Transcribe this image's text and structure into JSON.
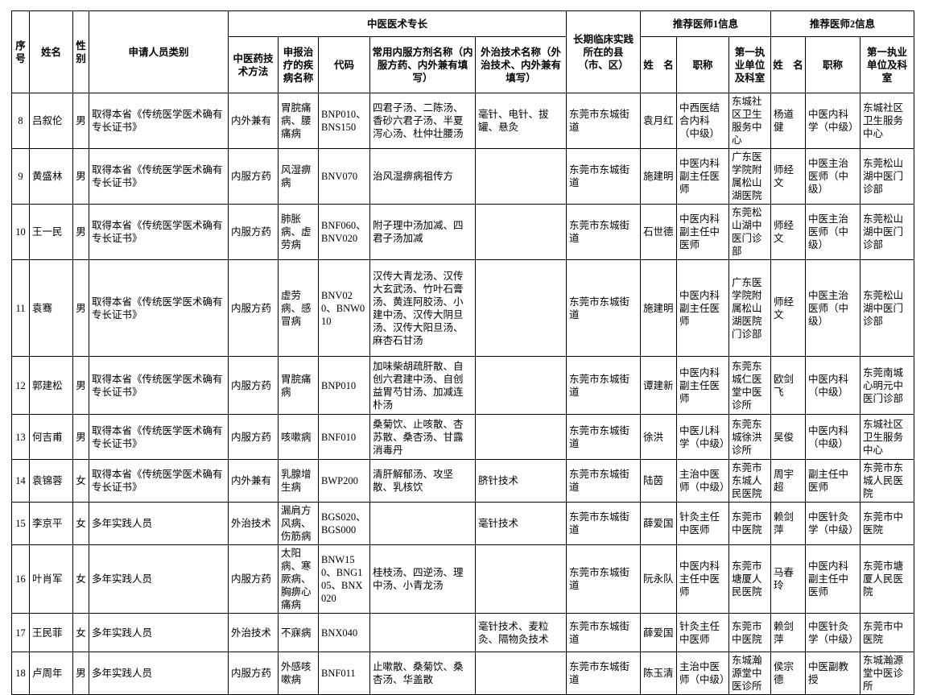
{
  "meta": {
    "background_color": "#ffffff",
    "border_color": "#000000",
    "text_color": "#000000"
  },
  "table": {
    "group_headers": {
      "seq": "序号",
      "name": "姓名",
      "gender": "性别",
      "category": "申请人员类别",
      "specialty_group": "中医医术专长",
      "practice_location": "长期临床实践所在的县（市、区）",
      "doctor1_group": "推荐医师1信息",
      "doctor2_group": "推荐医师2信息"
    },
    "sub_headers": {
      "method": "中医药技术方法",
      "disease": "申报治疗的疾病名称",
      "code": "代码",
      "internal_formula": "常用内服方剂名称（内服方药、内外兼有填写）",
      "external_technique": "外治技术名称（外治技术、内外兼有填写）",
      "doctor_name": "姓　名",
      "doctor_title": "职称",
      "doctor_unit": "第一执业单位及科室"
    },
    "col_keys": [
      "seq",
      "name",
      "gender",
      "category",
      "method",
      "disease",
      "code",
      "internal-formula",
      "external-technique",
      "practice-location",
      "doctor1-name",
      "doctor1-title",
      "doctor1-unit",
      "doctor2-name",
      "doctor2-title",
      "doctor2-unit"
    ],
    "rows": [
      [
        "8",
        "吕叙伦",
        "男",
        "取得本省《传统医学医术确有专长证书》",
        "内外兼有",
        "胃脘痛病、腰痛病",
        "BNP010、BNS150",
        "四君子汤、二陈汤、香砂六君子汤、半夏泻心汤、杜仲壮腰汤",
        "毫针、电针、拔罐、悬灸",
        "东莞市东城街道",
        "袁月红",
        "中西医结合内科（中级）",
        "东城社区卫生服务中心",
        "杨道健",
        "中医内科学（中级）",
        "东城社区卫生服务中心"
      ],
      [
        "9",
        "黄盛林",
        "男",
        "取得本省《传统医学医术确有专长证书》",
        "内服方药",
        "风湿痹病",
        "BNV070",
        "治风湿痹病祖传方",
        "",
        "东莞市东城街道",
        "施建明",
        "中医内科副主任医师",
        "广东医学院附属松山湖医院",
        "师经文",
        "中医主治医师（中级）",
        "东莞松山湖中医门诊部"
      ],
      [
        "10",
        "王一民",
        "男",
        "取得本省《传统医学医术确有专长证书》",
        "内服方药",
        "肺胀病、虚劳病",
        "BNF060、BNV020",
        "附子理中汤加减、四君子汤加减",
        "",
        "东莞市东城街道",
        "石世德",
        "中医内科副主任中医师",
        "东莞松山湖中医门诊部",
        "师经文",
        "中医主治医师（中级）",
        "东莞松山湖中医门诊部"
      ],
      [
        "11",
        "袁骞",
        "男",
        "取得本省《传统医学医术确有专长证书》",
        "内服方药",
        "虚劳病、感冒病",
        "BNV020、BNW010",
        "汉传大青龙汤、汉传大玄武汤、竹叶石膏汤、黄连阿胶汤、小建中汤、汉传大阴旦汤、汉传大阳旦汤、麻杏石甘汤",
        "",
        "东莞市东城街道",
        "施建明",
        "中医内科副主任医师",
        "广东医学院附属松山湖医院门诊部",
        "师经文",
        "中医主治医师（中级）",
        "东莞松山湖中医门诊部"
      ],
      [
        "12",
        "郭建松",
        "男",
        "取得本省《传统医学医术确有专长证书》",
        "内服方药",
        "胃脘痛病",
        "BNP010",
        "加味柴胡疏肝散、自创六君建中汤、自创益胃芍甘汤、加减连朴汤",
        "",
        "东莞市东城街道",
        "谭建新",
        "中医内科副主任医师",
        "东莞东城仁医堂中医诊所",
        "欧剑飞",
        "中医内科（中级）",
        "东莞南城心明元中医门诊部"
      ],
      [
        "13",
        "何吉甫",
        "男",
        "取得本省《传统医学医术确有专长证书》",
        "内服方药",
        "咳嗽病",
        "BNF010",
        "桑菊饮、止咳散、杏苏散、桑杏汤、甘露消毒丹",
        "",
        "东莞市东城街道",
        "徐洪",
        "中医儿科学（中级）",
        "东莞东城徐洪诊所",
        "吴俊",
        "中医内科（中级）",
        "东城社区卫生服务中心"
      ],
      [
        "14",
        "袁锦蓉",
        "女",
        "取得本省《传统医学医术确有专长证书》",
        "内外兼有",
        "乳腺增生病",
        "BWP200",
        "清肝解郁汤、攻坚散、乳核饮",
        "脐针技术",
        "东莞市东城街道",
        "陆茵",
        "主治中医师（中级）",
        "东莞市东城人民医院",
        "周宇超",
        "副主任中医师",
        "东莞市东城人民医院"
      ],
      [
        "15",
        "李京平",
        "女",
        "多年实践人员",
        "外治技术",
        "漏肩方风病、伤筋病",
        "BGS020、BGS000",
        "",
        "毫针技术",
        "东莞市东城街道",
        "薛爱国",
        "针灸主任中医师",
        "东莞市中医院",
        "赖剑萍",
        "中医针灸学（中级）",
        "东莞市中医院"
      ],
      [
        "16",
        "叶肖军",
        "女",
        "多年实践人员",
        "内服方药",
        "太阳病、寒厥病、胸痹心痛病",
        "BNW150、BNG105、BNX020",
        "桂枝汤、四逆汤、理中汤、小青龙汤",
        "",
        "东莞市东城街道",
        "阮永队",
        "中医内科主任中医师",
        "东莞市塘厦人民医院",
        "马春玲",
        "中医内科副主任中医师",
        "东莞市塘厦人民医院"
      ],
      [
        "17",
        "王民菲",
        "女",
        "多年实践人员",
        "外治技术",
        "不寐病",
        "BNX040",
        "",
        "毫针技术、麦粒灸、隔物灸技术",
        "东莞市东城街道",
        "薛爱国",
        "针灸主任中医师",
        "东莞市中医院",
        "赖剑萍",
        "中医针灸学（中级）",
        "东莞市中医院"
      ],
      [
        "18",
        "卢周年",
        "男",
        "多年实践人员",
        "内服方药",
        "外感咳嗽病",
        "BNF011",
        "止嗽散、桑菊饮、桑杏汤、华盖散",
        "",
        "东莞市东城街道",
        "陈玉清",
        "主治中医师（中级）",
        "东城瀚源堂中医诊所",
        "侯宗德",
        "中医副教授",
        "东城瀚源堂中医诊所"
      ]
    ]
  }
}
